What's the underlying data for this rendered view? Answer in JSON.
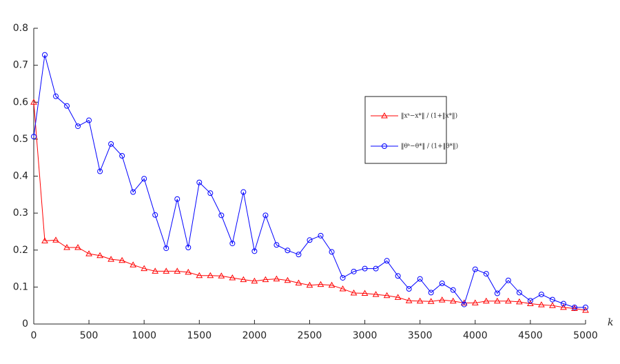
{
  "chart_data": {
    "type": "line",
    "x_label": "k",
    "x": [
      0,
      100,
      200,
      300,
      400,
      500,
      600,
      700,
      800,
      900,
      1000,
      1100,
      1200,
      1300,
      1400,
      1500,
      1600,
      1700,
      1800,
      1900,
      2000,
      2100,
      2200,
      2300,
      2400,
      2500,
      2600,
      2700,
      2800,
      2900,
      3000,
      3100,
      3200,
      3300,
      3400,
      3500,
      3600,
      3700,
      3800,
      3900,
      4000,
      4100,
      4200,
      4300,
      4400,
      4500,
      4600,
      4700,
      4800,
      4900,
      5000
    ],
    "series": [
      {
        "name": "‖xᵏ−x*‖ / (1+‖x*‖)",
        "color": "#ff0000",
        "marker": "triangle",
        "values": [
          0.6,
          0.225,
          0.227,
          0.207,
          0.207,
          0.19,
          0.185,
          0.175,
          0.172,
          0.16,
          0.15,
          0.143,
          0.143,
          0.143,
          0.14,
          0.131,
          0.131,
          0.13,
          0.125,
          0.12,
          0.116,
          0.12,
          0.122,
          0.118,
          0.111,
          0.105,
          0.107,
          0.105,
          0.095,
          0.084,
          0.083,
          0.08,
          0.077,
          0.072,
          0.063,
          0.062,
          0.061,
          0.065,
          0.062,
          0.057,
          0.057,
          0.062,
          0.062,
          0.062,
          0.06,
          0.055,
          0.052,
          0.05,
          0.045,
          0.042,
          0.037
        ]
      },
      {
        "name": "‖θᵏ−θ*‖ / (1+‖θ*‖)",
        "color": "#0000ff",
        "marker": "circle",
        "values": [
          0.507,
          0.728,
          0.616,
          0.59,
          0.535,
          0.551,
          0.413,
          0.487,
          0.455,
          0.357,
          0.393,
          0.295,
          0.205,
          0.338,
          0.207,
          0.383,
          0.354,
          0.294,
          0.218,
          0.357,
          0.197,
          0.294,
          0.214,
          0.199,
          0.188,
          0.227,
          0.239,
          0.195,
          0.125,
          0.142,
          0.15,
          0.15,
          0.171,
          0.13,
          0.095,
          0.122,
          0.085,
          0.11,
          0.092,
          0.053,
          0.148,
          0.136,
          0.083,
          0.118,
          0.085,
          0.063,
          0.08,
          0.066,
          0.055,
          0.045,
          0.045
        ]
      }
    ],
    "xlim": [
      0,
      5000
    ],
    "xticks": [
      0,
      500,
      1000,
      1500,
      2000,
      2500,
      3000,
      3500,
      4000,
      4500,
      5000
    ],
    "ylim": [
      0,
      0.8
    ],
    "yticks": [
      0,
      0.1,
      0.2,
      0.3,
      0.4,
      0.5,
      0.6,
      0.7,
      0.8
    ]
  }
}
